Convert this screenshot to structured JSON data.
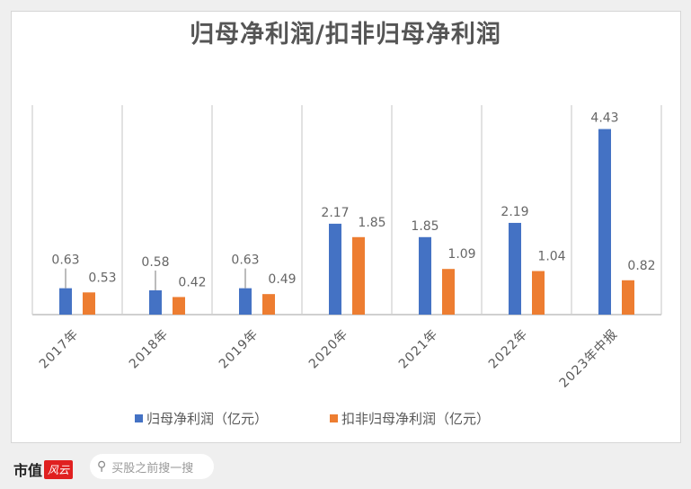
{
  "chart_data": {
    "type": "bar",
    "title": "归母净利润/扣非归母净利润",
    "categories": [
      "2017年",
      "2018年",
      "2019年",
      "2020年",
      "2021年",
      "2022年",
      "2023年中报"
    ],
    "series": [
      {
        "name": "归母净利润（亿元）",
        "color": "#4472c4",
        "values": [
          0.63,
          0.58,
          0.63,
          2.17,
          1.85,
          2.19,
          4.43
        ]
      },
      {
        "name": "扣非归母净利润（亿元）",
        "color": "#ed7d31",
        "values": [
          0.53,
          0.42,
          0.49,
          1.85,
          1.09,
          1.04,
          0.82
        ]
      }
    ],
    "ylim": [
      0,
      5
    ],
    "legend": "bottom"
  },
  "footer": {
    "logo_text": "市值",
    "logo_badge": "风云",
    "search_placeholder": "买股之前搜一搜",
    "search_icon": "search-icon"
  }
}
